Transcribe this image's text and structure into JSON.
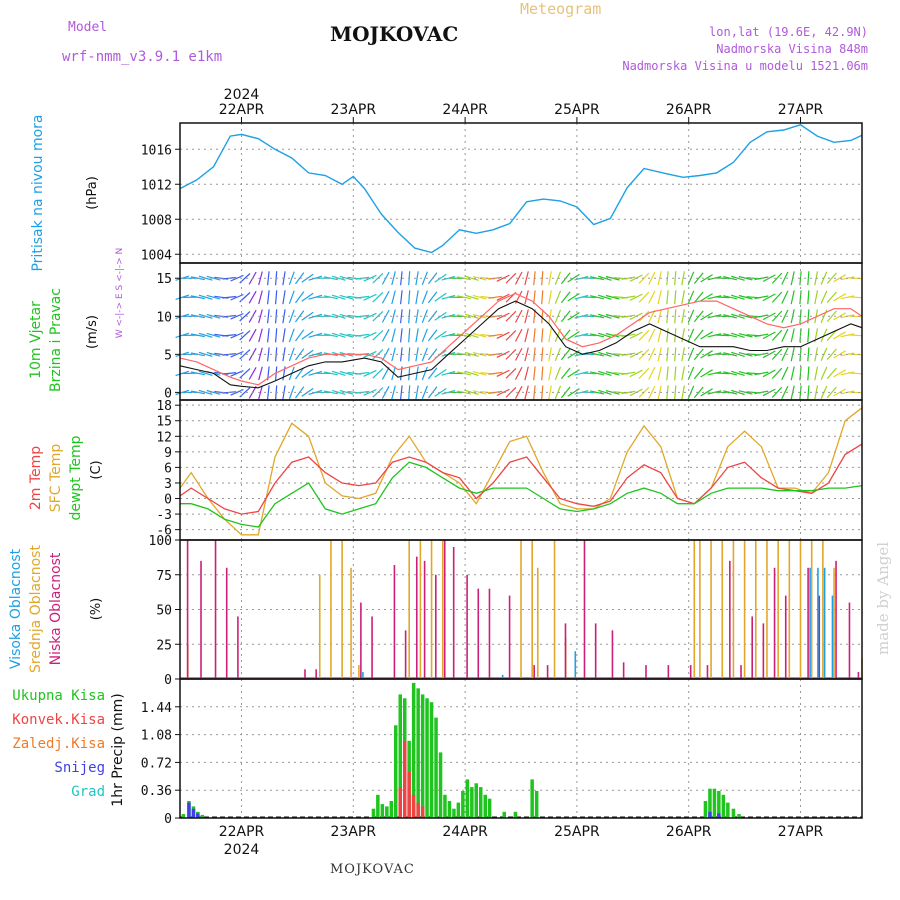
{
  "header": {
    "model_label": "Model",
    "model_name": "wrf-nmm_v3.9.1 e1km",
    "station": "MOJKOVAC",
    "meteogram": "Meteogram",
    "lonlat": "lon,lat (19.6E, 42.9N)",
    "elevation": "Nadmorska Visina 848m",
    "model_elevation": "Nadmorska Visina u modelu 1521.06m"
  },
  "footer": {
    "station": "MOJKOVAC",
    "watermark": "made by Angel"
  },
  "chart_data": {
    "type": "line",
    "x_axis": {
      "year": "2024",
      "dates": [
        "22APR",
        "23APR",
        "24APR",
        "25APR",
        "26APR",
        "27APR"
      ],
      "range_days": [
        -0.55,
        5.55
      ]
    },
    "pressure": {
      "ylabel": "Pritisak na nivou mora",
      "unit": "(hPa)",
      "color": "#1ea0e6",
      "ylim": [
        1003,
        1019
      ],
      "ticks": [
        1004,
        1008,
        1012,
        1016
      ],
      "x": [
        -0.55,
        -0.4,
        -0.25,
        -0.1,
        0.0,
        0.15,
        0.3,
        0.45,
        0.6,
        0.75,
        0.9,
        1.0,
        1.1,
        1.25,
        1.4,
        1.55,
        1.7,
        1.8,
        1.95,
        2.1,
        2.25,
        2.4,
        2.55,
        2.7,
        2.85,
        3.0,
        3.15,
        3.3,
        3.45,
        3.6,
        3.8,
        3.95,
        4.1,
        4.25,
        4.4,
        4.55,
        4.7,
        4.85,
        5.0,
        5.15,
        5.3,
        5.45,
        5.55
      ],
      "values": [
        1011.5,
        1012.5,
        1014,
        1017.5,
        1017.7,
        1017.2,
        1016,
        1015,
        1013.3,
        1013,
        1012,
        1012.9,
        1011.5,
        1008.6,
        1006.5,
        1004.7,
        1004.2,
        1005,
        1006.8,
        1006.4,
        1006.8,
        1007.5,
        1010,
        1010.3,
        1010.1,
        1009.4,
        1007.4,
        1008.1,
        1011.6,
        1013.8,
        1013.2,
        1012.8,
        1013,
        1013.3,
        1014.5,
        1016.8,
        1018,
        1018.2,
        1018.8,
        1017.5,
        1016.8,
        1017,
        1017.6
      ]
    },
    "wind": {
      "ylabel_line1": "10m Vjetar",
      "ylabel_line2": "Brzina i Pravac",
      "unit": "(m/s)",
      "compass": "W <-|-> E  S <-|-> N",
      "ylim": [
        -1,
        17
      ],
      "ticks": [
        0,
        5,
        10,
        15
      ],
      "speed_color": "#111111",
      "gust_color": "#ff6666",
      "x": [
        -0.55,
        -0.4,
        -0.25,
        -0.1,
        0.0,
        0.15,
        0.3,
        0.45,
        0.6,
        0.75,
        0.9,
        1.1,
        1.25,
        1.4,
        1.55,
        1.7,
        1.85,
        2.0,
        2.15,
        2.3,
        2.45,
        2.6,
        2.75,
        2.9,
        3.05,
        3.2,
        3.35,
        3.5,
        3.65,
        3.8,
        3.95,
        4.1,
        4.25,
        4.4,
        4.55,
        4.7,
        4.85,
        5.0,
        5.15,
        5.3,
        5.45,
        5.55
      ],
      "speed": [
        3.5,
        3,
        2.5,
        1,
        0.8,
        0.6,
        1.5,
        2.5,
        3.5,
        4,
        4,
        4.5,
        4,
        2,
        2.5,
        3,
        5,
        7,
        9,
        11,
        12,
        11,
        9,
        6,
        5,
        5.5,
        6.5,
        8,
        9,
        8,
        7,
        6,
        6,
        6,
        5.5,
        5.5,
        6,
        6,
        7,
        8,
        9,
        8.5
      ],
      "gust": [
        4.5,
        4,
        3,
        2,
        1.5,
        1,
        2.5,
        3.5,
        4.5,
        5,
        5,
        5,
        4.5,
        3,
        3.5,
        4,
        6,
        8,
        10,
        12,
        13,
        12,
        10,
        7,
        6,
        6.5,
        7.5,
        9,
        10.5,
        11,
        11.5,
        12,
        12,
        11,
        10,
        9,
        8.5,
        9,
        10,
        11,
        11,
        10
      ]
    },
    "temperature": {
      "ylabel_t2m": "2m Temp",
      "ylabel_sfc": "SFC Temp",
      "ylabel_dew": "dewpt Temp",
      "unit": "(C)",
      "ylim": [
        -8,
        19
      ],
      "ticks": [
        -6,
        -3,
        0,
        3,
        6,
        9,
        12,
        15,
        18
      ],
      "x": [
        -0.55,
        -0.45,
        -0.3,
        -0.15,
        0.0,
        0.15,
        0.3,
        0.45,
        0.6,
        0.75,
        0.9,
        1.05,
        1.2,
        1.35,
        1.5,
        1.65,
        1.8,
        1.95,
        2.1,
        2.25,
        2.4,
        2.55,
        2.7,
        2.85,
        3.0,
        3.15,
        3.3,
        3.45,
        3.6,
        3.75,
        3.9,
        4.05,
        4.2,
        4.35,
        4.5,
        4.65,
        4.8,
        4.95,
        5.1,
        5.25,
        5.4,
        5.55
      ],
      "t2m": [
        0.5,
        2,
        0,
        -2,
        -3,
        -2.5,
        3,
        7,
        8,
        5,
        3,
        2.5,
        3,
        7,
        8,
        7,
        5,
        4,
        0,
        3,
        7,
        8,
        4,
        0,
        -1,
        -1.5,
        -0.5,
        4,
        6.5,
        5,
        0,
        -1,
        2,
        6,
        7,
        4,
        2,
        1.5,
        1,
        3,
        8.5,
        10.5
      ],
      "sfc": [
        2,
        5,
        0,
        -4,
        -7,
        -7,
        8,
        14.5,
        12,
        3,
        0.5,
        0,
        1,
        8,
        12,
        7,
        5,
        3,
        -1,
        5,
        11,
        12,
        5,
        -1,
        -2,
        -2,
        0,
        9,
        14,
        10,
        0,
        -1,
        2,
        10,
        13,
        10,
        2,
        2,
        1,
        5,
        15,
        17.5
      ],
      "dewpt": [
        -1,
        -1,
        -2,
        -4,
        -5,
        -5.5,
        -1,
        1,
        3,
        -2,
        -3,
        -2,
        -1,
        4,
        7,
        6,
        4,
        2,
        1,
        2,
        2,
        2,
        0,
        -2,
        -2.5,
        -2,
        -1,
        1,
        2,
        1,
        -1,
        -1,
        1,
        2,
        2,
        2,
        1.5,
        1.5,
        1.5,
        2,
        2,
        2.5
      ],
      "colors": {
        "t2m": "#ef4444",
        "sfc": "#e2a72a",
        "dewpt": "#1fc41f"
      }
    },
    "clouds": {
      "ylabel_high": "Visoka Oblacnost",
      "ylabel_mid": "Srednja Oblacnost",
      "ylabel_low": "Niska Oblacnost",
      "unit": "(%)",
      "ylim": [
        0,
        100
      ],
      "ticks": [
        0,
        25,
        50,
        75,
        100
      ],
      "colors": {
        "high": "#1ea0e6",
        "mid": "#e2a72a",
        "low": "#cc1f7a"
      },
      "low": [
        [
          -0.5,
          100
        ],
        [
          -0.38,
          85
        ],
        [
          -0.25,
          100
        ],
        [
          -0.15,
          80
        ],
        [
          -0.05,
          45
        ],
        [
          0.55,
          7
        ],
        [
          0.65,
          7
        ],
        [
          1.05,
          55
        ],
        [
          1.15,
          45
        ],
        [
          1.35,
          82
        ],
        [
          1.45,
          35
        ],
        [
          1.55,
          88
        ],
        [
          1.62,
          85
        ],
        [
          1.72,
          75
        ],
        [
          1.8,
          100
        ],
        [
          1.88,
          95
        ],
        [
          2.0,
          75
        ],
        [
          2.1,
          65
        ],
        [
          2.2,
          65
        ],
        [
          2.38,
          60
        ],
        [
          2.6,
          10
        ],
        [
          2.72,
          10
        ],
        [
          2.88,
          40
        ],
        [
          3.05,
          100
        ],
        [
          3.15,
          40
        ],
        [
          3.3,
          35
        ],
        [
          3.4,
          12
        ],
        [
          3.6,
          10
        ],
        [
          3.8,
          10
        ],
        [
          4.0,
          10
        ],
        [
          4.15,
          10
        ],
        [
          4.35,
          85
        ],
        [
          4.45,
          10
        ],
        [
          4.55,
          45
        ],
        [
          4.65,
          40
        ],
        [
          4.75,
          80
        ],
        [
          4.85,
          60
        ],
        [
          5.05,
          80
        ],
        [
          5.15,
          60
        ],
        [
          5.3,
          85
        ],
        [
          5.42,
          55
        ],
        [
          5.5,
          5
        ]
      ],
      "mid": [
        [
          -0.48,
          25
        ],
        [
          0.7,
          75
        ],
        [
          0.8,
          100
        ],
        [
          0.9,
          100
        ],
        [
          0.98,
          80
        ],
        [
          1.05,
          10
        ],
        [
          1.5,
          100
        ],
        [
          1.6,
          100
        ],
        [
          1.7,
          100
        ],
        [
          1.8,
          100
        ],
        [
          2.5,
          100
        ],
        [
          2.6,
          100
        ],
        [
          2.65,
          80
        ],
        [
          2.8,
          100
        ],
        [
          2.9,
          30
        ],
        [
          4.05,
          100
        ],
        [
          4.1,
          100
        ],
        [
          4.2,
          100
        ],
        [
          4.3,
          100
        ],
        [
          4.4,
          100
        ],
        [
          4.5,
          100
        ],
        [
          4.6,
          100
        ],
        [
          4.7,
          100
        ],
        [
          4.8,
          100
        ],
        [
          4.9,
          100
        ],
        [
          5.0,
          100
        ],
        [
          5.1,
          100
        ],
        [
          5.2,
          100
        ],
        [
          5.3,
          80
        ],
        [
          5.55,
          15
        ]
      ],
      "high": [
        [
          1.05,
          5
        ],
        [
          2.3,
          3
        ],
        [
          2.95,
          20
        ],
        [
          5.05,
          80
        ],
        [
          5.12,
          80
        ],
        [
          5.18,
          80
        ],
        [
          5.25,
          60
        ]
      ]
    },
    "precip": {
      "ylabel": "1hr Precip (mm)",
      "ylim": [
        0,
        1.8
      ],
      "ticks": [
        0,
        0.36,
        0.72,
        1.08,
        1.44
      ],
      "legend": [
        "Ukupna Kisa",
        "Konvek.Kisa",
        "Zaledj.Kisa",
        "Snijeg",
        "Grad"
      ],
      "legend_colors": [
        "#1fc41f",
        "#ef4444",
        "#ef7a2a",
        "#4040e6",
        "#22c4c4"
      ],
      "colors": {
        "total": "#1fc41f",
        "convective": "#ef4444",
        "snow": "#4040e6"
      },
      "total": [
        [
          -0.52,
          0.05
        ],
        [
          -0.47,
          0.22
        ],
        [
          -0.43,
          0.15
        ],
        [
          -0.39,
          0.08
        ],
        [
          -0.35,
          0.04
        ],
        [
          1.18,
          0.12
        ],
        [
          1.22,
          0.3
        ],
        [
          1.26,
          0.18
        ],
        [
          1.3,
          0.15
        ],
        [
          1.34,
          0.22
        ],
        [
          1.38,
          1.2
        ],
        [
          1.42,
          1.6
        ],
        [
          1.46,
          1.55
        ],
        [
          1.5,
          1.0
        ],
        [
          1.54,
          1.75
        ],
        [
          1.58,
          1.68
        ],
        [
          1.62,
          1.6
        ],
        [
          1.66,
          1.55
        ],
        [
          1.7,
          1.5
        ],
        [
          1.74,
          1.3
        ],
        [
          1.78,
          0.85
        ],
        [
          1.82,
          0.3
        ],
        [
          1.86,
          0.22
        ],
        [
          1.9,
          0.12
        ],
        [
          1.94,
          0.2
        ],
        [
          1.98,
          0.35
        ],
        [
          2.02,
          0.5
        ],
        [
          2.06,
          0.4
        ],
        [
          2.1,
          0.45
        ],
        [
          2.14,
          0.4
        ],
        [
          2.18,
          0.3
        ],
        [
          2.22,
          0.25
        ],
        [
          2.35,
          0.08
        ],
        [
          2.45,
          0.08
        ],
        [
          2.6,
          0.5
        ],
        [
          2.64,
          0.35
        ],
        [
          4.15,
          0.22
        ],
        [
          4.19,
          0.38
        ],
        [
          4.23,
          0.38
        ],
        [
          4.27,
          0.35
        ],
        [
          4.31,
          0.3
        ],
        [
          4.35,
          0.2
        ],
        [
          4.4,
          0.12
        ],
        [
          4.45,
          0.05
        ]
      ],
      "convective": [
        [
          1.42,
          0.4
        ],
        [
          1.46,
          1.0
        ],
        [
          1.5,
          0.6
        ],
        [
          1.54,
          0.3
        ],
        [
          1.58,
          0.2
        ],
        [
          1.62,
          0.15
        ]
      ],
      "snow": [
        [
          -0.47,
          0.2
        ],
        [
          -0.43,
          0.12
        ],
        [
          -0.39,
          0.06
        ],
        [
          4.19,
          0.08
        ],
        [
          4.27,
          0.06
        ]
      ]
    }
  }
}
